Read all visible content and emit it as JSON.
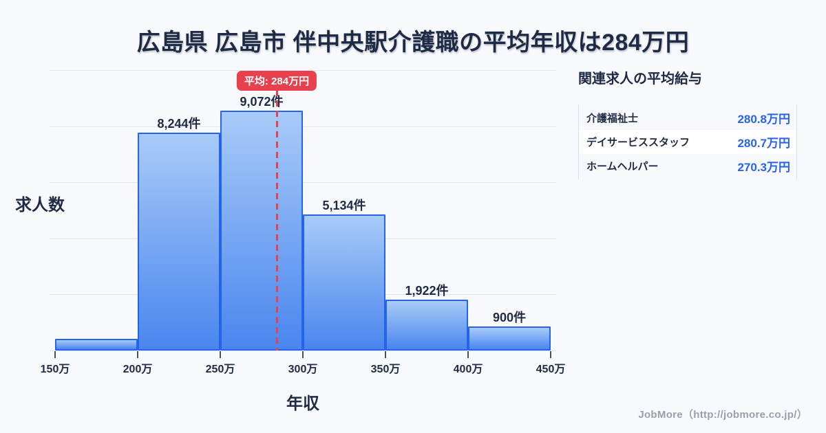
{
  "title": "広島県 広島市 伴中央駅介護職の平均年収は284万円",
  "chart_data": {
    "type": "bar",
    "subtype": "histogram",
    "title": "広島県 広島市 伴中央駅介護職の平均年収は284万円",
    "xlabel": "年収",
    "ylabel": "求人数",
    "x_ticks": [
      "150万",
      "200万",
      "250万",
      "300万",
      "350万",
      "400万",
      "450万"
    ],
    "x_axis_min_man": 150,
    "x_axis_max_man": 450,
    "x_bin_width_man": 50,
    "ylim": [
      0,
      10000
    ],
    "grid": true,
    "bins": [
      {
        "range": "150万-200万",
        "value": 450,
        "label": "",
        "estimated": true
      },
      {
        "range": "200万-250万",
        "value": 8244,
        "label": "8,244件"
      },
      {
        "range": "250万-300万",
        "value": 9072,
        "label": "9,072件"
      },
      {
        "range": "300万-350万",
        "value": 5134,
        "label": "5,134件"
      },
      {
        "range": "350万-400万",
        "value": 1922,
        "label": "1,922件"
      },
      {
        "range": "400万-450万",
        "value": 900,
        "label": "900件"
      }
    ],
    "mean": {
      "value_man": 284,
      "badge_label": "平均: 284万円"
    }
  },
  "panel": {
    "title": "関連求人の平均給与",
    "rows": [
      {
        "name": "介護福祉士",
        "value": "280.8万円"
      },
      {
        "name": "デイサービススタッフ",
        "value": "280.7万円"
      },
      {
        "name": "ホームヘルパー",
        "value": "270.3万円"
      }
    ]
  },
  "footer": {
    "credit": "JobMore（http://jobmore.co.jp/）"
  },
  "colors": {
    "background": "#f7f9fc",
    "text_dark": "#1f2a44",
    "bar_border": "#2563eb",
    "bar_gradient_top": "#a8cbf8",
    "bar_gradient_bottom": "#4a86ef",
    "accent_red": "#e8414d",
    "value_blue": "#2563eb",
    "gridline": "#e2e7f0",
    "tick_mark": "#444b5c",
    "panel_border": "#d9dee8",
    "footer_grey": "#9aa0ab"
  }
}
